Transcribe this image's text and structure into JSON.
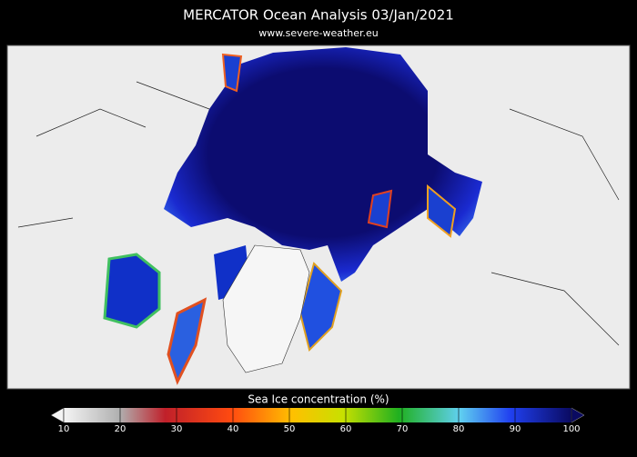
{
  "header": {
    "title": "MERCATOR Ocean Analysis  03/Jan/2021",
    "subtitle": "www.severe-weather.eu"
  },
  "colorbar": {
    "label": "Sea Ice concentration (%)",
    "range": [
      10,
      100
    ],
    "ticks": [
      10,
      20,
      30,
      40,
      50,
      60,
      70,
      80,
      90,
      100
    ]
  }
}
